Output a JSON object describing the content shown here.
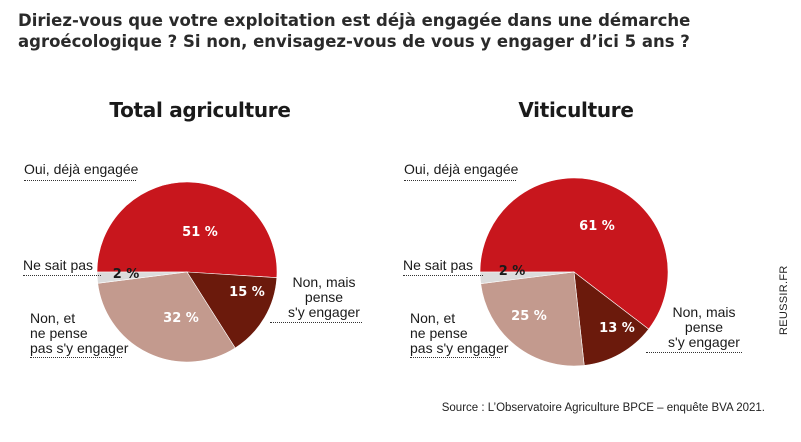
{
  "question": "Diriez-vous que votre exploitation est déjà engagée dans une démarche agroécologique ? Si non, envisagez-vous de vous y engager d’ici 5 ans ?",
  "source": "Source : L’Observatoire Agriculture BPCE – enquête BVA 2021.",
  "credit": "REUSSIR.FR",
  "colors": {
    "oui": "#c8161d",
    "non_mais": "#6b1a0c",
    "non_et": "#c39a8e",
    "ne_sait": "#dcdcdc"
  },
  "chart_data": [
    {
      "type": "pie",
      "title": "Total agriculture",
      "slices": [
        {
          "label": "Oui, déjà engagée",
          "value": 51,
          "text": "51 %",
          "color": "#c8161d"
        },
        {
          "label": "Non, mais pense s'y engager",
          "value": 15,
          "text": "15 %",
          "color": "#6b1a0c"
        },
        {
          "label": "Non, et ne pense pas s'y engager",
          "value": 32,
          "text": "32 %",
          "color": "#c39a8e"
        },
        {
          "label": "Ne sait pas",
          "value": 2,
          "text": "2 %",
          "color": "#dcdcdc"
        }
      ]
    },
    {
      "type": "pie",
      "title": "Viticulture",
      "slices": [
        {
          "label": "Oui, déjà engagée",
          "value": 61,
          "text": "61 %",
          "color": "#c8161d"
        },
        {
          "label": "Non, mais pense s'y engager",
          "value": 13,
          "text": "13 %",
          "color": "#6b1a0c"
        },
        {
          "label": "Non, et ne pense pas s'y engager",
          "value": 25,
          "text": "25 %",
          "color": "#c39a8e"
        },
        {
          "label": "Ne sait pas",
          "value": 2,
          "text": "2 %",
          "color": "#dcdcdc"
        }
      ]
    }
  ],
  "labels": {
    "oui": "Oui, déjà engagée",
    "ne_sait": "Ne sait pas",
    "non_et_1": "Non, et",
    "non_et_2": "ne pense",
    "non_et_3": "pas s'y engager",
    "non_mais_1": "Non, mais",
    "non_mais_2": "pense",
    "non_mais_3": "s'y engager"
  }
}
